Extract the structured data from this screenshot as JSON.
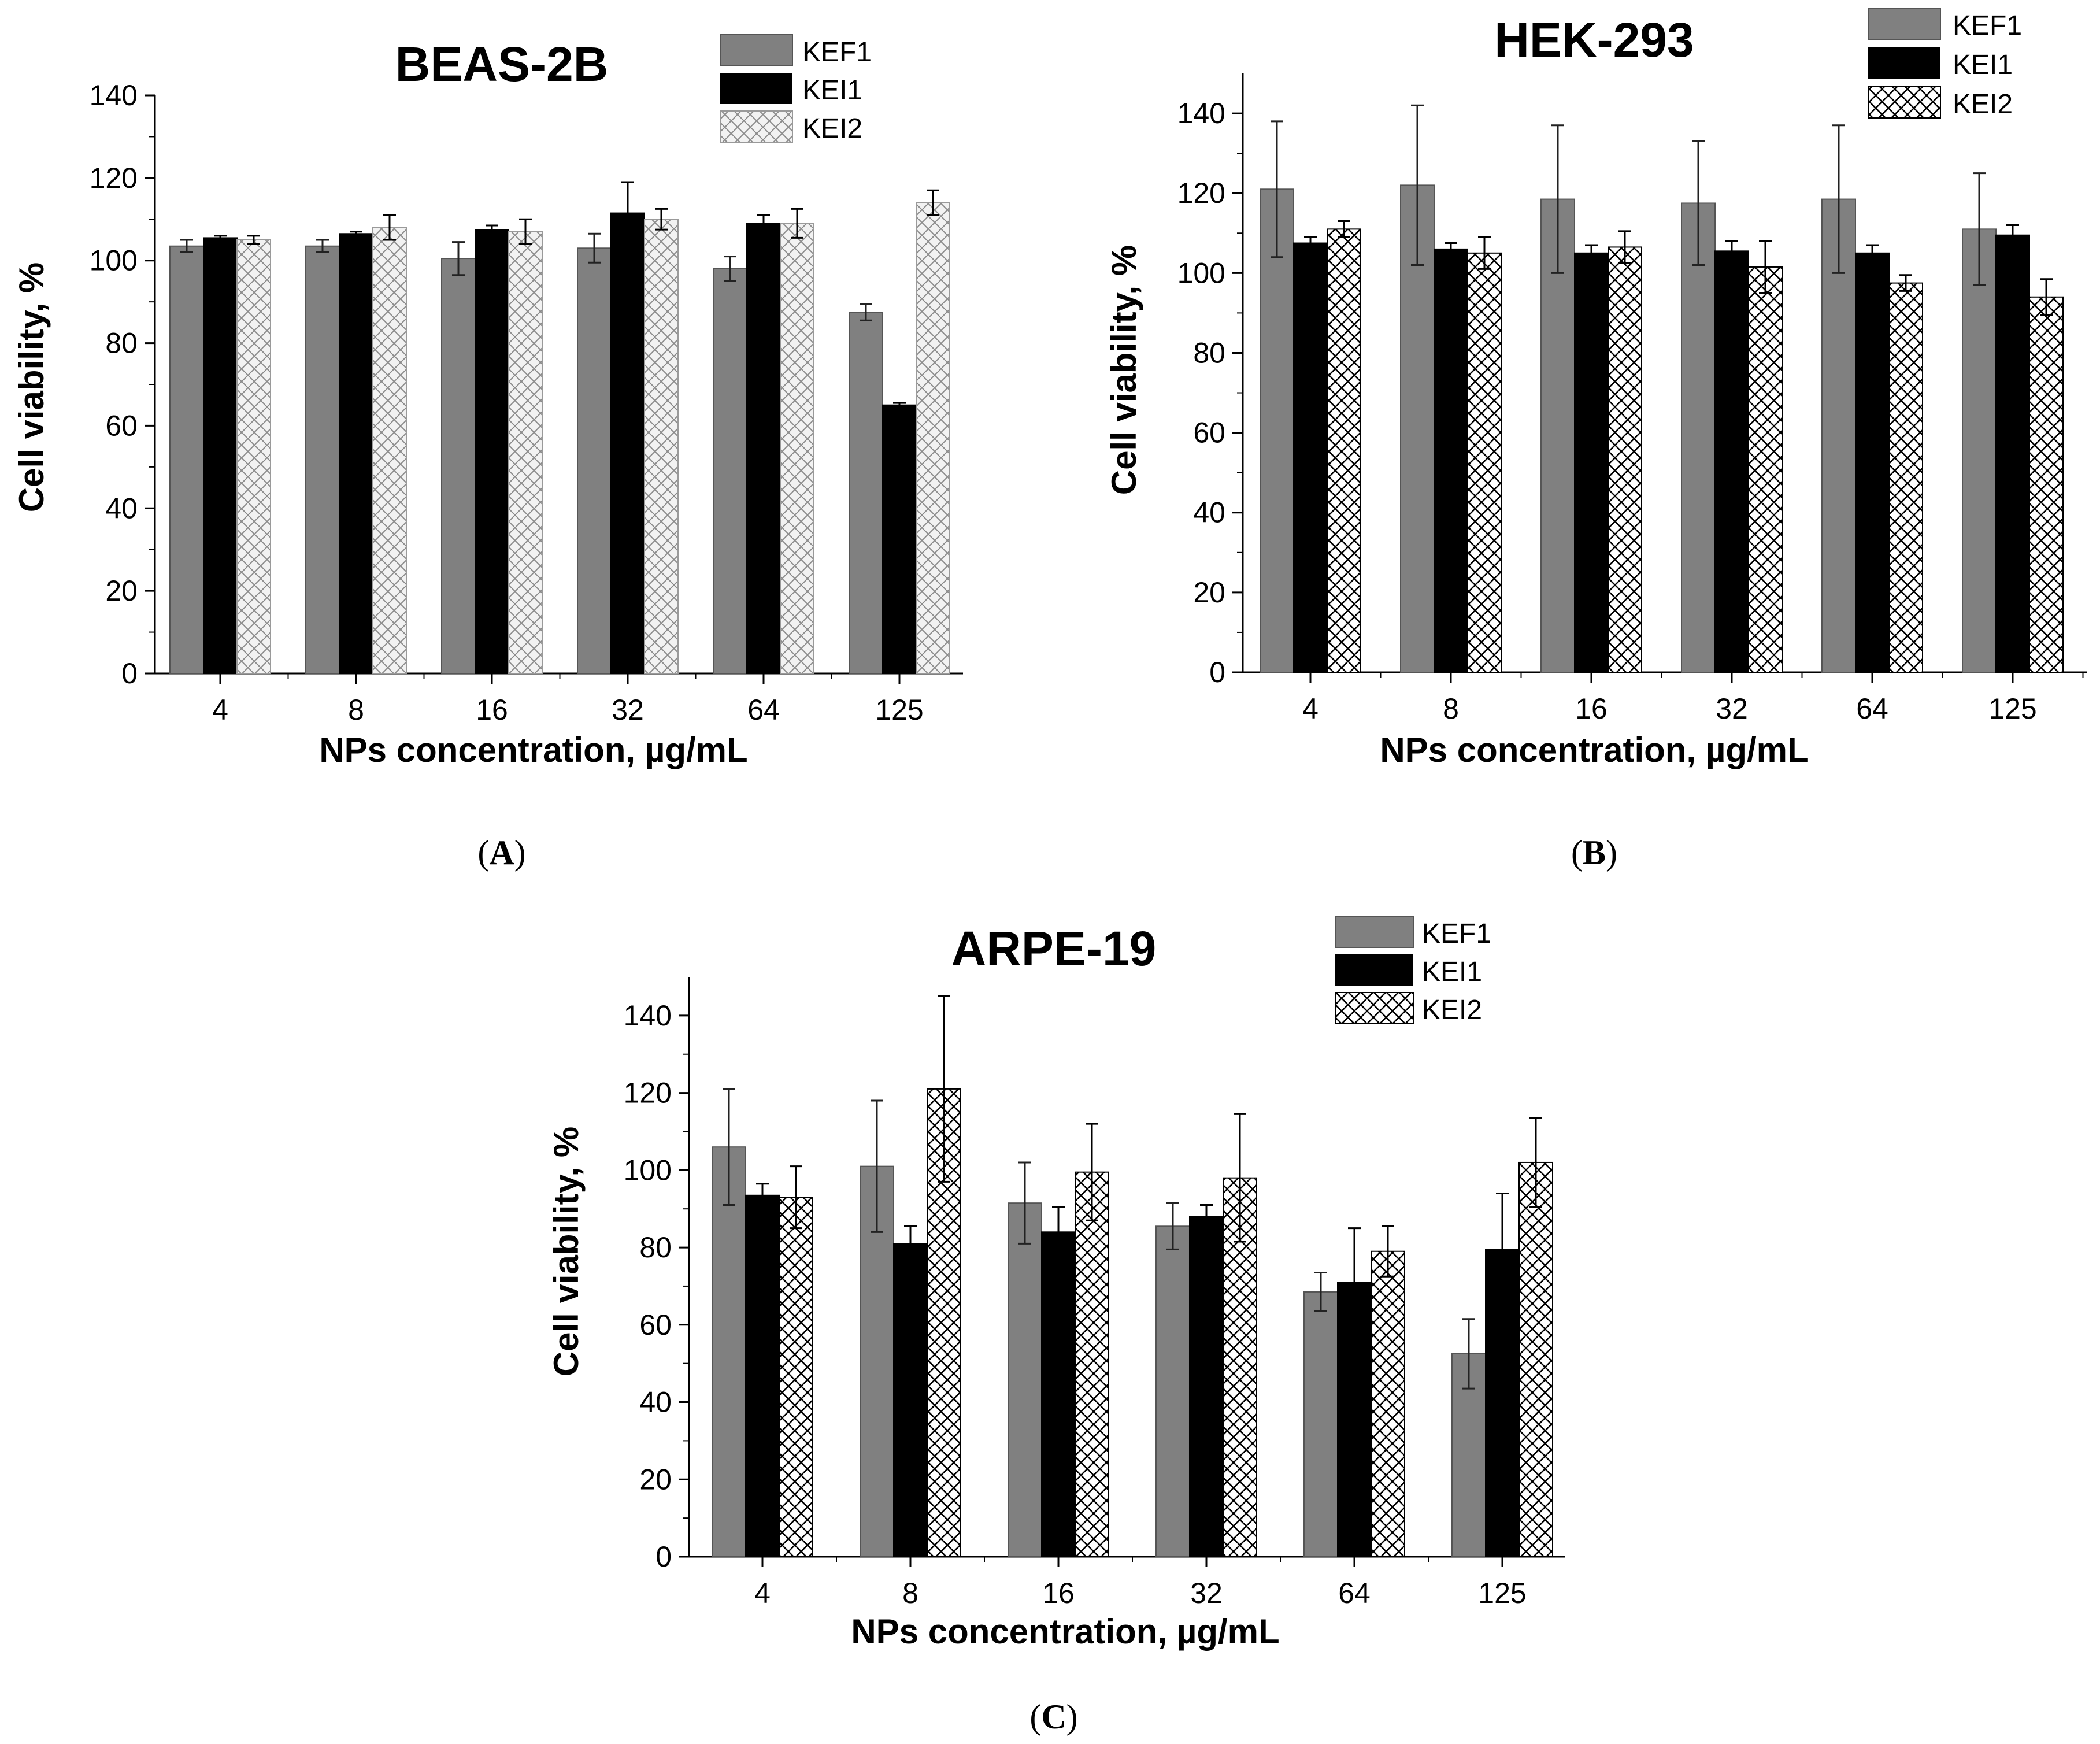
{
  "figure": {
    "legend_entries": [
      "KEF1",
      "KEI1",
      "KEI2"
    ],
    "colors": {
      "KEF1": "#808080",
      "KEI1": "#000000",
      "KEI2_A": "#cfcfcf",
      "KEI2_hatch": "#000000"
    }
  },
  "chart_data": [
    {
      "panel": "A",
      "panel_label": "A",
      "type": "bar",
      "title": "BEAS-2B",
      "xlabel": "NPs concentration, µg/mL",
      "ylabel": "Cell viability, %",
      "ylim": [
        0,
        140
      ],
      "yticks": [
        0,
        20,
        40,
        60,
        80,
        100,
        120,
        140
      ],
      "categories": [
        "4",
        "8",
        "16",
        "32",
        "64",
        "125"
      ],
      "legend_position": "top-right",
      "series": [
        {
          "name": "KEF1",
          "values": [
            103.5,
            103.5,
            100.5,
            103,
            98,
            87.5
          ],
          "errors": [
            1.5,
            1.5,
            4,
            3.5,
            3,
            2
          ]
        },
        {
          "name": "KEI1",
          "values": [
            105.5,
            106.5,
            107.5,
            111.5,
            109,
            65
          ],
          "errors": [
            0.5,
            0.5,
            1,
            7.5,
            2,
            0.5
          ]
        },
        {
          "name": "KEI2",
          "values": [
            105,
            108,
            107,
            110,
            109,
            114
          ],
          "errors": [
            1,
            3,
            3,
            2.5,
            3.5,
            3
          ]
        }
      ]
    },
    {
      "panel": "B",
      "panel_label": "B",
      "type": "bar",
      "title": "HEK-293",
      "xlabel": "NPs concentration, µg/mL",
      "ylabel": "Cell viability, %",
      "ylim": [
        0,
        150
      ],
      "yticks": [
        0,
        20,
        40,
        60,
        80,
        100,
        120,
        140
      ],
      "categories": [
        "4",
        "8",
        "16",
        "32",
        "64",
        "125"
      ],
      "legend_position": "top-right",
      "series": [
        {
          "name": "KEF1",
          "values": [
            121,
            122,
            118.5,
            117.5,
            118.5,
            111
          ],
          "errors": [
            17,
            20,
            18.5,
            15.5,
            18.5,
            14
          ]
        },
        {
          "name": "KEI1",
          "values": [
            107.5,
            106,
            105,
            105.5,
            105,
            109.5
          ],
          "errors": [
            1.5,
            1.5,
            2,
            2.5,
            2,
            2.5
          ]
        },
        {
          "name": "KEI2",
          "values": [
            111,
            105,
            106.5,
            101.5,
            97.5,
            94
          ],
          "errors": [
            2,
            4,
            4,
            6.5,
            2,
            4.5
          ]
        }
      ]
    },
    {
      "panel": "C",
      "panel_label": "C",
      "type": "bar",
      "title": "ARPE-19",
      "xlabel": "NPs concentration, µg/mL",
      "ylabel": "Cell viability, %",
      "ylim": [
        0,
        150
      ],
      "yticks": [
        0,
        20,
        40,
        60,
        80,
        100,
        120,
        140
      ],
      "categories": [
        "4",
        "8",
        "16",
        "32",
        "64",
        "125"
      ],
      "legend_position": "top-right",
      "series": [
        {
          "name": "KEF1",
          "values": [
            106,
            101,
            91.5,
            85.5,
            68.5,
            52.5
          ],
          "errors": [
            15,
            17,
            10.5,
            6,
            5,
            9
          ]
        },
        {
          "name": "KEI1",
          "values": [
            93.5,
            81,
            84,
            88,
            71,
            79.5
          ],
          "errors": [
            3,
            4.5,
            6.5,
            3,
            14,
            14.5
          ]
        },
        {
          "name": "KEI2",
          "values": [
            93,
            121,
            99.5,
            98,
            79,
            102
          ],
          "errors": [
            8,
            24,
            12.5,
            16.5,
            6.5,
            11.5
          ]
        }
      ]
    }
  ]
}
